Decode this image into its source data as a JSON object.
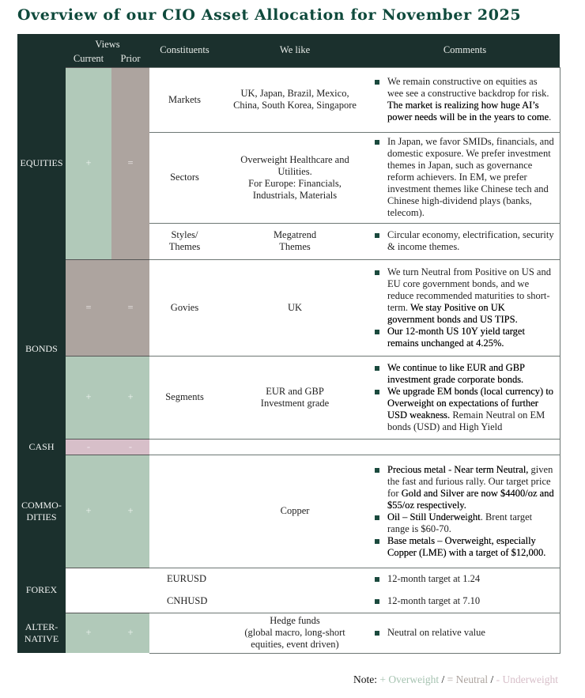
{
  "title": "Overview of our CIO Asset Allocation for November 2025",
  "colors": {
    "header": "#1b302d",
    "overweight": "#b1c9b9",
    "neutral": "#ada49f",
    "underweight": "#d7bfc9",
    "title": "#0f4a3c"
  },
  "header": {
    "views": "Views",
    "current": "Current",
    "prior": "Prior",
    "constituents": "Constituents",
    "we_like": "We like",
    "comments": "Comments"
  },
  "rows": [
    {
      "label": "EQUITIES",
      "label_span": 3,
      "current": "+",
      "current_color": "g",
      "prior": "=",
      "prior_color": "t",
      "view_span": 3,
      "constituent": "Markets",
      "we_like": "UK, Japan, Brazil, Mexico, China, South Korea, Singapore",
      "h": 82,
      "comments": [
        [
          {
            "t": "We remain constructive on equities as wee see a constructive backdrop for risk. "
          },
          {
            "t": "The market is realizing how huge AI’s power needs will be in the years to come",
            "b": true
          },
          {
            "t": "."
          }
        ]
      ]
    },
    {
      "constituent": "Sectors",
      "we_like": "Overweight Healthcare and Utilities.\nFor Europe: Financials, Industrials, Materials",
      "h": 115,
      "comments": [
        [
          {
            "t": "In Japan, we favor SMIDs, financials, and domestic exposure. We prefer investment themes in Japan, such as governance reform achievers. In EM, we prefer investment themes like Chinese tech and Chinese high-dividend plays (banks, telecom)."
          }
        ]
      ]
    },
    {
      "constituent": "Styles/\nThemes",
      "we_like": "Megatrend\nThemes",
      "h": 46,
      "comments": [
        [
          {
            "t": "Circular economy, electrification, security & income themes."
          }
        ]
      ]
    },
    {
      "label": "BONDS",
      "label_span": 2,
      "current": "=",
      "current_color": "t",
      "prior": "=",
      "prior_color": "t",
      "view_span": 1,
      "constituent": "Govies",
      "we_like": "UK",
      "h": 122,
      "comments": [
        [
          {
            "t": "We turn Neutral from Positive on US and EU core government bonds, and we reduce recommended maturities to short-term. "
          },
          {
            "t": "We stay Positive on UK government bonds and US TIPS.",
            "b": true
          }
        ],
        [
          {
            "t": "Our 12-month US 10Y yield target remains unchanged at 4.25%.",
            "b": true
          }
        ]
      ]
    },
    {
      "current": "+",
      "current_color": "g",
      "prior": "+",
      "prior_color": "g",
      "view_span": 1,
      "constituent": "Segments",
      "we_like": "EUR and GBP\nInvestment grade",
      "h": 105,
      "comments": [
        [
          {
            "t": "We continue to like EUR and GBP investment grade corporate bonds.",
            "b": true
          }
        ],
        [
          {
            "t": "We upgrade EM bonds (local currency) to Overweight on expectations of further USD weakness.",
            "b": true
          },
          {
            "t": " Remain Neutral on EM bonds (USD) and High Yield"
          }
        ]
      ]
    },
    {
      "label": "CASH",
      "label_span": 1,
      "current": "-",
      "current_color": "p",
      "prior": "-",
      "prior_color": "p",
      "view_span": 1,
      "constituent": "",
      "we_like": "",
      "h": 20,
      "comments": []
    },
    {
      "label": "COMMO-\nDITIES",
      "label_span": 1,
      "current": "+",
      "current_color": "g",
      "prior": "+",
      "prior_color": "g",
      "view_span": 1,
      "constituent": "",
      "we_like": "Copper",
      "h": 143,
      "comments": [
        [
          {
            "t": "Precious metal - Near term Neutral,",
            "b": true
          },
          {
            "t": " given the fast and furious rally. Our target price for "
          },
          {
            "t": "Gold and Silver are now $4400/oz and $55/oz respectively.",
            "b": true
          }
        ],
        [
          {
            "t": "Oil – Still Underweight",
            "b": true
          },
          {
            "t": ". Brent target range is $60-70."
          }
        ],
        [
          {
            "t": "Base metals – Overweight, especially Copper (LME) with a target of $12,000.",
            "b": true
          }
        ]
      ]
    },
    {
      "label": "FOREX",
      "label_span": 2,
      "current": "",
      "current_color": "w",
      "prior": "",
      "prior_color": "w",
      "view_span": 2,
      "constituent": "EURUSD",
      "we_like": "",
      "h": 28,
      "nobottom": true,
      "comments": [
        [
          {
            "t": "12-month target at 1.24"
          }
        ]
      ]
    },
    {
      "constituent": "CNHUSD",
      "we_like": "",
      "h": 29,
      "notop": true,
      "comments": [
        [
          {
            "t": "12-month target at 7.10"
          }
        ]
      ]
    },
    {
      "label": "ALTER-\nNATIVE",
      "label_span": 1,
      "current": "+",
      "current_color": "g",
      "prior": "+",
      "prior_color": "g",
      "view_span": 1,
      "constituent": "",
      "we_like": "Hedge funds\n(global macro, long-short equities, event driven)",
      "h": 51,
      "end": true,
      "comments": [
        [
          {
            "t": "Neutral on relative value"
          }
        ]
      ]
    }
  ],
  "note": {
    "label": "Note:",
    "overweight": "+ Overweight",
    "sep1": " / ",
    "neutral": "= Neutral",
    "sep2": " / ",
    "underweight": "- Underweight"
  }
}
